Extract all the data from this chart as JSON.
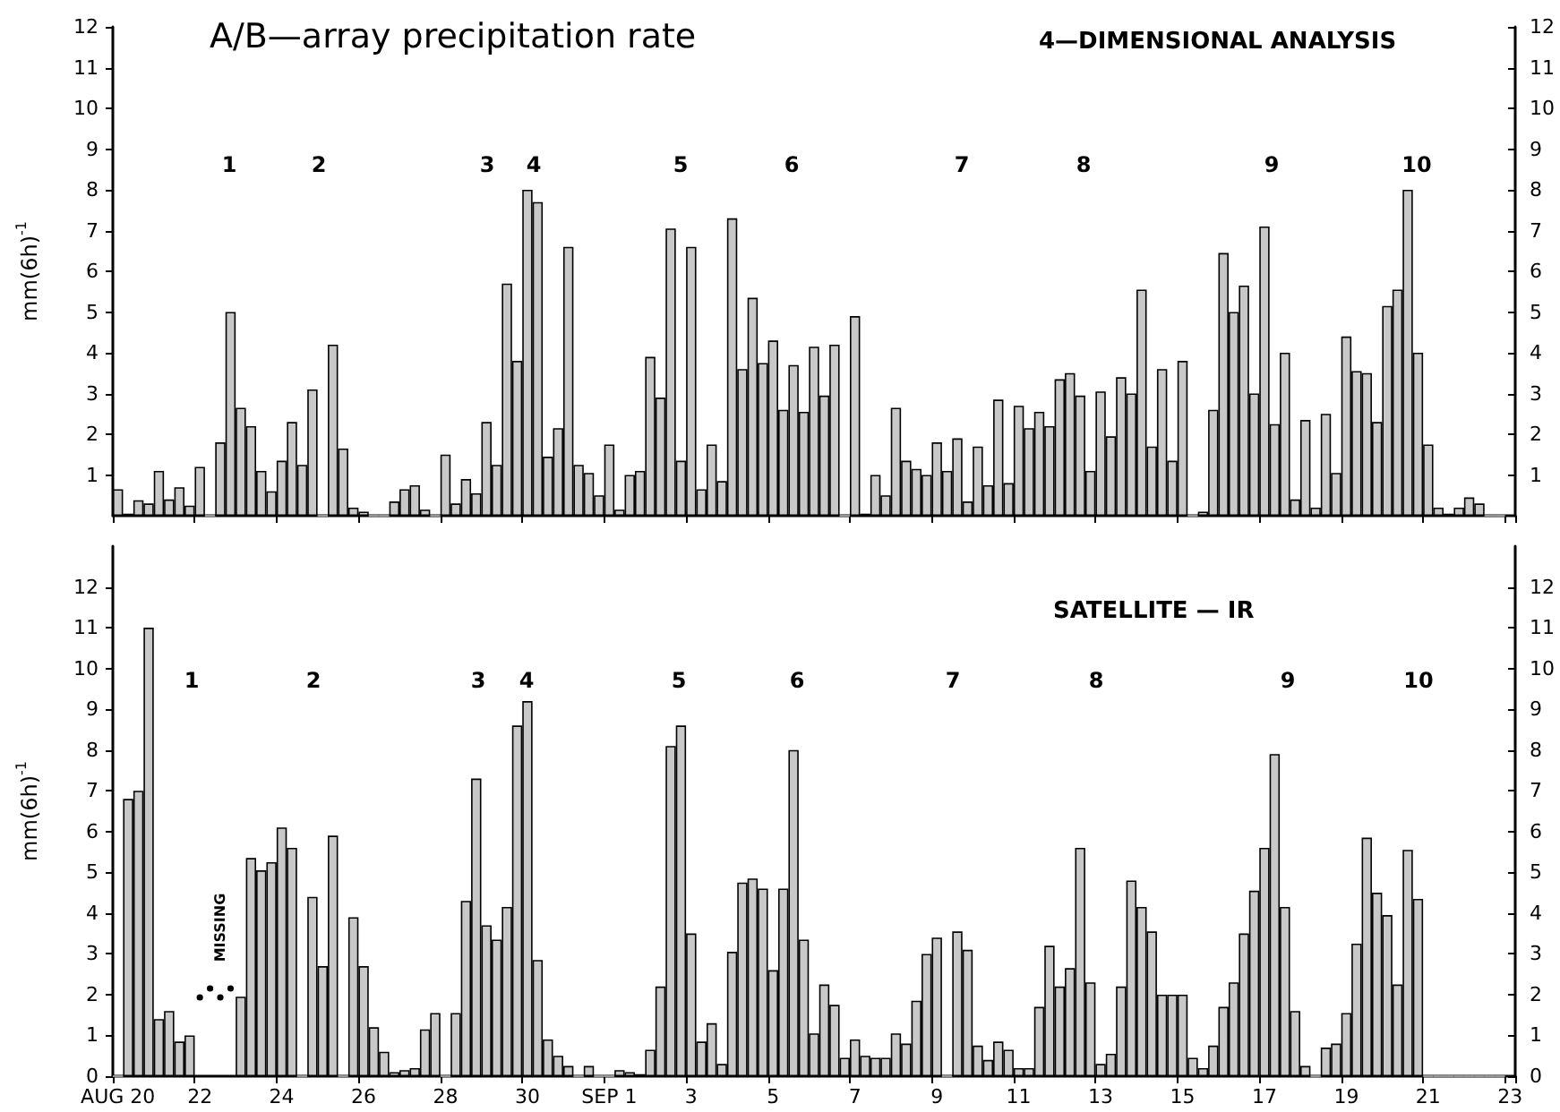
{
  "chart_data": [
    {
      "type": "bar",
      "title": "A/B—array precipitation rate",
      "subtitle": "4—DIMENSIONAL ANALYSIS",
      "ylabel": "mm(6h)$^{-1}$",
      "color": "#c8c8c8",
      "tick_labels": "y",
      "categories": [
        null,
        null,
        null,
        null,
        null,
        null,
        null,
        null,
        null,
        null,
        null,
        null,
        null,
        null,
        null,
        null,
        null,
        null,
        null,
        null,
        null,
        null,
        null,
        null,
        null,
        null,
        null,
        null,
        null,
        null,
        null,
        null,
        null,
        null,
        null,
        null,
        null,
        null,
        null,
        null,
        null,
        null,
        null,
        null,
        null,
        null,
        null,
        null,
        null,
        null,
        null,
        null,
        null,
        null,
        null,
        null,
        null,
        null,
        null,
        null,
        null,
        null,
        null,
        null,
        null,
        null,
        null,
        null,
        null,
        null,
        null,
        null,
        null,
        null,
        null,
        null,
        null,
        null,
        null,
        null,
        null,
        null,
        null,
        null,
        null,
        null,
        null,
        null,
        null,
        null,
        null,
        null,
        null,
        null,
        null,
        null,
        null,
        null,
        null,
        null,
        null,
        null,
        null,
        null,
        null,
        null,
        null,
        null,
        null,
        null,
        null,
        null,
        null,
        null,
        null,
        null,
        null,
        null,
        null,
        null,
        null,
        null,
        null,
        null,
        null,
        null,
        null,
        null,
        null,
        null,
        null,
        null,
        null,
        null,
        null,
        null,
        null
      ],
      "values": [
        0.65,
        0.05,
        0.38,
        0.3,
        1.1,
        0.4,
        0.7,
        0.25,
        1.2,
        0,
        1.8,
        5.0,
        2.65,
        2.2,
        1.1,
        0.6,
        1.35,
        2.3,
        1.25,
        3.1,
        0,
        4.2,
        1.65,
        0.2,
        0.1,
        0,
        0,
        0.35,
        0.65,
        0.75,
        0.15,
        0,
        1.5,
        0.3,
        0.9,
        0.55,
        2.3,
        1.25,
        5.7,
        3.8,
        8.0,
        7.7,
        1.45,
        2.15,
        6.6,
        1.25,
        1.05,
        0.5,
        1.75,
        0.15,
        1.0,
        1.1,
        3.9,
        2.9,
        7.05,
        1.35,
        6.6,
        0.65,
        1.75,
        0.85,
        7.3,
        3.6,
        5.35,
        3.75,
        4.3,
        2.6,
        3.7,
        2.55,
        4.15,
        2.95,
        4.2,
        0,
        4.9,
        0.05,
        1.0,
        0.5,
        2.65,
        1.35,
        1.15,
        1.0,
        1.8,
        1.1,
        1.9,
        0.35,
        1.7,
        0.75,
        2.85,
        0.8,
        2.7,
        2.15,
        2.55,
        2.2,
        3.35,
        3.5,
        2.95,
        1.1,
        3.05,
        1.95,
        3.4,
        3.0,
        5.55,
        1.7,
        3.6,
        1.35,
        3.8,
        0,
        0.1,
        2.6,
        6.45,
        5.0,
        5.65,
        3.0,
        7.1,
        2.25,
        4.0,
        0.4,
        2.35,
        0.2,
        2.5,
        1.05,
        4.4,
        3.55,
        3.5,
        2.3,
        5.15,
        5.55,
        8.0,
        4.0,
        1.75,
        0.2,
        0.05,
        0.2,
        0.45,
        0.3,
        0,
        0,
        null
      ],
      "ylim": [
        0,
        12
      ],
      "yticks": [
        1,
        2,
        3,
        4,
        5,
        6,
        7,
        8,
        9,
        10,
        11,
        12
      ],
      "y2lim": [
        0,
        12
      ],
      "y2ticks": [
        1,
        2,
        3,
        4,
        5,
        6,
        7,
        8,
        9,
        10,
        11,
        12
      ],
      "annotations": [
        "1",
        "2",
        "3",
        "4",
        "5",
        "6",
        "7",
        "8",
        "9",
        "10"
      ]
    },
    {
      "type": "bar",
      "title": "SATELLITE — IR",
      "ylabel": "mm(6h)$^{-1}$",
      "color": "#c8c8c8",
      "categories": [
        "AUG 20",
        null,
        null,
        null,
        null,
        null,
        null,
        null,
        "22",
        null,
        null,
        null,
        null,
        null,
        null,
        null,
        "24",
        null,
        null,
        null,
        null,
        null,
        null,
        null,
        "26",
        null,
        null,
        null,
        null,
        null,
        null,
        null,
        "28",
        null,
        null,
        null,
        null,
        null,
        null,
        null,
        "30",
        null,
        null,
        null,
        null,
        null,
        null,
        null,
        "SEP 1",
        null,
        null,
        null,
        null,
        null,
        null,
        null,
        "3",
        null,
        null,
        null,
        null,
        null,
        null,
        null,
        "5",
        null,
        null,
        null,
        null,
        null,
        null,
        null,
        "7",
        null,
        null,
        null,
        null,
        null,
        null,
        null,
        "9",
        null,
        null,
        null,
        null,
        null,
        null,
        null,
        "11",
        null,
        null,
        null,
        null,
        null,
        null,
        null,
        "13",
        null,
        null,
        null,
        null,
        null,
        null,
        null,
        "15",
        null,
        null,
        null,
        null,
        null,
        null,
        null,
        "17",
        null,
        null,
        null,
        null,
        null,
        null,
        null,
        "19",
        null,
        null,
        null,
        null,
        null,
        null,
        null,
        "21",
        null,
        null,
        null,
        null,
        null,
        null,
        null,
        "23"
      ],
      "values": [
        0,
        6.8,
        7.0,
        11.0,
        1.4,
        1.6,
        0.85,
        1.0,
        null,
        null,
        null,
        null,
        1.95,
        5.35,
        5.05,
        5.25,
        6.1,
        5.6,
        0,
        4.4,
        2.7,
        5.9,
        0,
        3.9,
        2.7,
        1.2,
        0.6,
        0.1,
        0.15,
        0.2,
        1.15,
        1.55,
        0,
        1.55,
        4.3,
        7.3,
        3.7,
        3.35,
        4.15,
        8.6,
        9.2,
        2.85,
        0.9,
        0.5,
        0.25,
        0,
        0.25,
        0,
        0,
        0.15,
        0.1,
        0.05,
        0.65,
        2.2,
        8.1,
        8.6,
        3.5,
        0.85,
        1.3,
        0.3,
        3.05,
        4.75,
        4.85,
        4.6,
        2.6,
        4.6,
        8.0,
        3.35,
        1.05,
        2.25,
        1.75,
        0.45,
        0.9,
        0.5,
        0.45,
        0.45,
        1.05,
        0.8,
        1.85,
        3.0,
        3.4,
        0,
        3.55,
        3.1,
        0.75,
        0.4,
        0.85,
        0.65,
        0.2,
        0.2,
        1.7,
        3.2,
        2.2,
        2.65,
        5.6,
        2.3,
        0.3,
        0.55,
        2.2,
        4.8,
        4.15,
        3.55,
        2.0,
        2.0,
        2.0,
        0.45,
        0.2,
        0.75,
        1.7,
        2.3,
        3.5,
        4.55,
        5.6,
        7.9,
        4.15,
        1.6,
        0.25,
        0,
        0.7,
        0.8,
        1.55,
        3.25,
        5.85,
        4.5,
        3.95,
        2.25,
        5.55,
        4.35,
        0,
        0,
        0,
        0,
        0,
        0,
        0,
        0,
        null
      ],
      "ylim": [
        0,
        13
      ],
      "yticks": [
        0,
        1,
        2,
        3,
        4,
        5,
        6,
        7,
        8,
        9,
        10,
        11,
        12
      ],
      "y2lim": [
        0,
        13
      ],
      "y2ticks": [
        0,
        1,
        2,
        3,
        4,
        5,
        6,
        7,
        8,
        9,
        10,
        11,
        12
      ],
      "annotations": [
        "1",
        "2",
        "3",
        "4",
        "5",
        "6",
        "7",
        "8",
        "9",
        "10",
        "MISSING"
      ]
    }
  ]
}
